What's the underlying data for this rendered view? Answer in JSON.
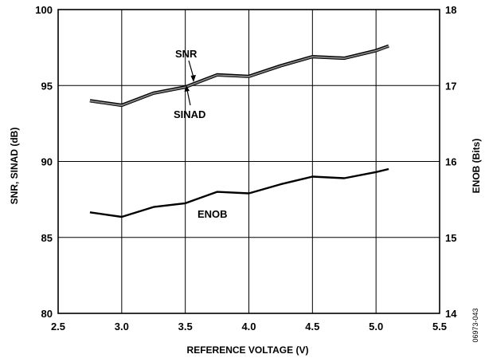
{
  "chart_data": {
    "type": "line",
    "xlabel": "REFERENCE VOLTAGE (V)",
    "ylabel_left": "SNR, SINAD (dB)",
    "ylabel_right": "ENOB (Bits)",
    "xlim": [
      2.5,
      5.5
    ],
    "ylim_left": [
      80,
      100
    ],
    "ylim_right": [
      14,
      18
    ],
    "xticks": [
      "2.5",
      "3.0",
      "3.5",
      "4.0",
      "4.5",
      "5.0",
      "5.5"
    ],
    "yticks_left": [
      "80",
      "85",
      "90",
      "95",
      "100"
    ],
    "yticks_right": [
      "14",
      "15",
      "16",
      "17",
      "18"
    ],
    "grid": true,
    "series": [
      {
        "name": "SNR",
        "axis": "left",
        "x": [
          2.75,
          3.0,
          3.25,
          3.5,
          3.75,
          4.0,
          4.25,
          4.5,
          4.75,
          5.0,
          5.1
        ],
        "values": [
          94.0,
          93.7,
          94.5,
          94.9,
          95.7,
          95.6,
          96.3,
          96.9,
          96.8,
          97.3,
          97.6
        ]
      },
      {
        "name": "SINAD",
        "axis": "left",
        "x": [
          2.75,
          3.0,
          3.25,
          3.5,
          3.75,
          4.0,
          4.25,
          4.5,
          4.75,
          5.0,
          5.1
        ],
        "values": [
          93.95,
          93.65,
          94.45,
          94.85,
          95.65,
          95.55,
          96.25,
          96.85,
          96.75,
          97.25,
          97.5
        ]
      },
      {
        "name": "ENOB",
        "axis": "right",
        "x": [
          2.75,
          3.0,
          3.25,
          3.5,
          3.75,
          4.0,
          4.25,
          4.5,
          4.75,
          5.0,
          5.1
        ],
        "values": [
          15.33,
          15.27,
          15.4,
          15.45,
          15.6,
          15.58,
          15.7,
          15.8,
          15.78,
          15.86,
          15.9
        ]
      }
    ],
    "annotations": {
      "snr": "SNR",
      "sinad": "SINAD",
      "enob": "ENOB"
    },
    "figure_id": "06973-043"
  }
}
